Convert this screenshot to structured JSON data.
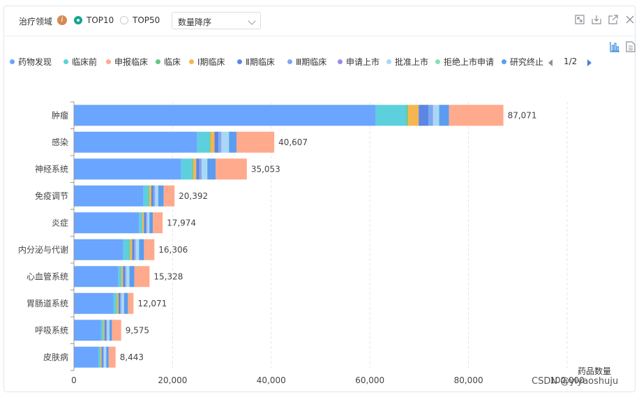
{
  "header": {
    "title": "治疗领域",
    "info_icon": "info-icon",
    "radios": [
      {
        "label": "TOP10",
        "selected": true
      },
      {
        "label": "TOP50",
        "selected": false
      }
    ],
    "sort_select": {
      "value": "数量降序"
    },
    "toolbar_icons": [
      "fullscreen-icon",
      "download-icon",
      "external-link-icon",
      "close-icon"
    ]
  },
  "view_icons": [
    "bar-chart-icon",
    "document-icon"
  ],
  "legend": {
    "items": [
      {
        "label": "药物发现",
        "color": "#6aa5ff"
      },
      {
        "label": "临床前",
        "color": "#5dd0dd"
      },
      {
        "label": "申报临床",
        "color": "#ffaa8c"
      },
      {
        "label": "临床",
        "color": "#63c784"
      },
      {
        "label": "Ⅰ期临床",
        "color": "#f5b651"
      },
      {
        "label": "Ⅱ期临床",
        "color": "#5b86e5"
      },
      {
        "label": "Ⅲ期临床",
        "color": "#7da7ee"
      },
      {
        "label": "申请上市",
        "color": "#9b8ae8"
      },
      {
        "label": "批准上市",
        "color": "#a8d8f5"
      },
      {
        "label": "拒绝上市申请",
        "color": "#86e2b2"
      },
      {
        "label": "研究终止",
        "color": "#5b9cf0"
      }
    ],
    "page_text": "1/2"
  },
  "chart_data": {
    "type": "bar",
    "orientation": "horizontal",
    "stacked": true,
    "categories": [
      "肿瘤",
      "感染",
      "神经系统",
      "免疫调节",
      "炎症",
      "内分泌与代谢",
      "心血管系统",
      "胃肠道系统",
      "呼吸系统",
      "皮肤病"
    ],
    "totals": [
      87071,
      40607,
      35053,
      20392,
      17974,
      16306,
      15328,
      12071,
      9575,
      8443
    ],
    "total_labels": [
      "87,071",
      "40,607",
      "35,053",
      "20,392",
      "17,974",
      "16,306",
      "15,328",
      "12,071",
      "9,575",
      "8,443"
    ],
    "series": [
      {
        "name": "药物发现",
        "color": "#6aa5ff",
        "values": [
          61200,
          25000,
          21700,
          14100,
          13200,
          10000,
          9000,
          8000,
          5500,
          5000
        ]
      },
      {
        "name": "临床前",
        "color": "#5dd0dd",
        "values": [
          6200,
          2500,
          2300,
          1000,
          600,
          1200,
          500,
          600,
          400,
          300
        ]
      },
      {
        "name": "临床",
        "color": "#63c784",
        "values": [
          300,
          200,
          200,
          200,
          100,
          200,
          150,
          150,
          100,
          100
        ]
      },
      {
        "name": "Ⅰ期临床",
        "color": "#f5b651",
        "values": [
          2200,
          800,
          600,
          400,
          300,
          400,
          300,
          300,
          200,
          200
        ]
      },
      {
        "name": "Ⅱ期临床",
        "color": "#5b86e5",
        "values": [
          2000,
          800,
          600,
          400,
          400,
          400,
          400,
          300,
          300,
          300
        ]
      },
      {
        "name": "Ⅲ期临床",
        "color": "#7da7ee",
        "values": [
          800,
          500,
          400,
          300,
          200,
          300,
          200,
          200,
          200,
          150
        ]
      },
      {
        "name": "申请上市",
        "color": "#9b8ae8",
        "values": [
          100,
          100,
          100,
          50,
          50,
          50,
          50,
          50,
          50,
          50
        ]
      },
      {
        "name": "批准上市",
        "color": "#a8d8f5",
        "values": [
          1200,
          1500,
          1100,
          600,
          400,
          600,
          600,
          500,
          400,
          400
        ]
      },
      {
        "name": "拒绝上市申请",
        "color": "#86e2b2",
        "values": [
          50,
          50,
          50,
          50,
          50,
          50,
          50,
          50,
          50,
          50
        ]
      },
      {
        "name": "研究终止",
        "color": "#5b9cf0",
        "values": [
          2000,
          1500,
          1700,
          1100,
          700,
          1000,
          1000,
          800,
          500,
          500
        ]
      },
      {
        "name": "申报临床",
        "color": "#ffaa8c",
        "values": [
          11021,
          7657,
          6303,
          2192,
          1974,
          2106,
          3078,
          1121,
          1875,
          1393
        ]
      }
    ],
    "x_ticks": [
      0,
      20000,
      40000,
      60000,
      80000,
      100000
    ],
    "x_tick_labels": [
      "0",
      "20,000",
      "40,000",
      "60,000",
      "80,000",
      "100,000"
    ],
    "xlim": [
      0,
      100000
    ],
    "xlabel": "药品数量",
    "grid": "vertical-dashed"
  },
  "watermark": "CSDN @yiyaoshuju"
}
